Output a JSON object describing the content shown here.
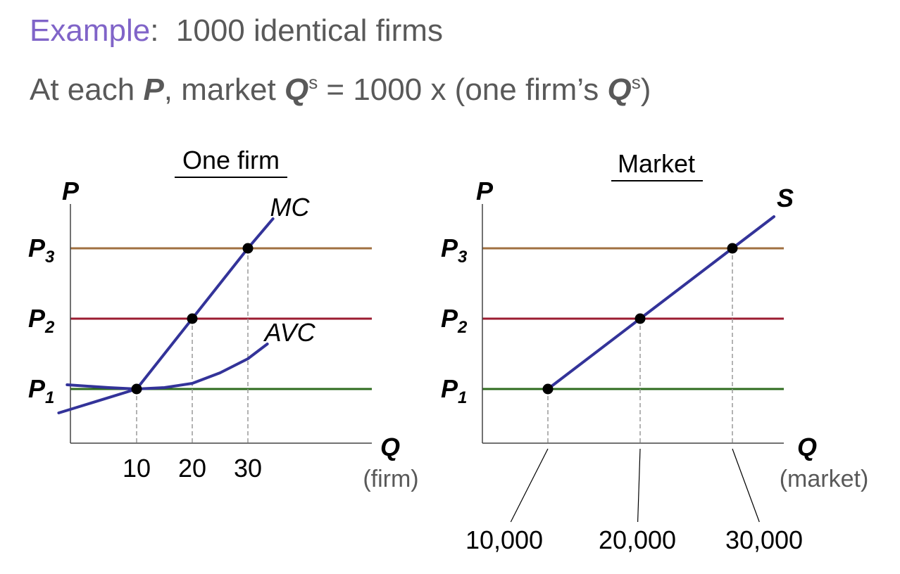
{
  "header": {
    "line1": {
      "accent": "Example",
      "colon": ":",
      "rest": "1000 identical firms"
    },
    "line2": {
      "pre": "At each ",
      "p": "P",
      "mid1": ",  market ",
      "q1": "Q",
      "s1": "s",
      "mid2": "  =  1000 x (one firm’s ",
      "q2": "Q",
      "s2": "s",
      "end": ")"
    }
  },
  "colors": {
    "axis": "#444444",
    "curve": "#333399",
    "p1_line": "#2e6b1e",
    "p2_line": "#9b1c31",
    "p3_line": "#a07040",
    "dash": "#9a9a9a",
    "point": "#000000",
    "text_dark": "#000000",
    "text_grey": "#595959"
  },
  "chart_data": [
    {
      "type": "line",
      "title": "One firm",
      "ylabel": "P",
      "xlabel": "Q",
      "xlabel_note": "(firm)",
      "price_levels": [
        {
          "label": "P",
          "sub": "1",
          "value": 1,
          "color": "#2e6b1e"
        },
        {
          "label": "P",
          "sub": "2",
          "value": 2,
          "color": "#9b1c31"
        },
        {
          "label": "P",
          "sub": "3",
          "value": 3,
          "color": "#a07040"
        }
      ],
      "x_ticks": [
        {
          "value": 10,
          "label": "10"
        },
        {
          "value": 20,
          "label": "20"
        },
        {
          "value": 30,
          "label": "30"
        }
      ],
      "series": [
        {
          "name": "MC",
          "x": [
            -4,
            10,
            20,
            30,
            34.5
          ],
          "y": [
            0.66,
            1,
            2,
            3,
            3.42
          ]
        },
        {
          "name": "AVC",
          "x": [
            -2.5,
            5,
            10,
            15,
            20,
            25,
            30,
            33.5
          ],
          "y": [
            1.06,
            1.02,
            1,
            1.02,
            1.08,
            1.23,
            1.43,
            1.64
          ]
        }
      ],
      "points": [
        {
          "x": 10,
          "y": 1
        },
        {
          "x": 20,
          "y": 2
        },
        {
          "x": 30,
          "y": 3
        }
      ]
    },
    {
      "type": "line",
      "title": "Market",
      "ylabel": "P",
      "xlabel": "Q",
      "xlabel_note": "(market)",
      "price_levels": [
        {
          "label": "P",
          "sub": "1",
          "value": 1,
          "color": "#2e6b1e"
        },
        {
          "label": "P",
          "sub": "2",
          "value": 2,
          "color": "#9b1c31"
        },
        {
          "label": "P",
          "sub": "3",
          "value": 3,
          "color": "#a07040"
        }
      ],
      "x_ticks": [
        {
          "value": 10000,
          "label": "10,000"
        },
        {
          "value": 20000,
          "label": "20,000"
        },
        {
          "value": 30000,
          "label": "30,000"
        }
      ],
      "series": [
        {
          "name": "S",
          "x": [
            10000,
            20000,
            30000,
            34500
          ],
          "y": [
            1,
            2,
            3,
            3.45
          ]
        }
      ],
      "points": [
        {
          "x": 10000,
          "y": 1
        },
        {
          "x": 20000,
          "y": 2
        },
        {
          "x": 30000,
          "y": 3
        }
      ]
    }
  ]
}
